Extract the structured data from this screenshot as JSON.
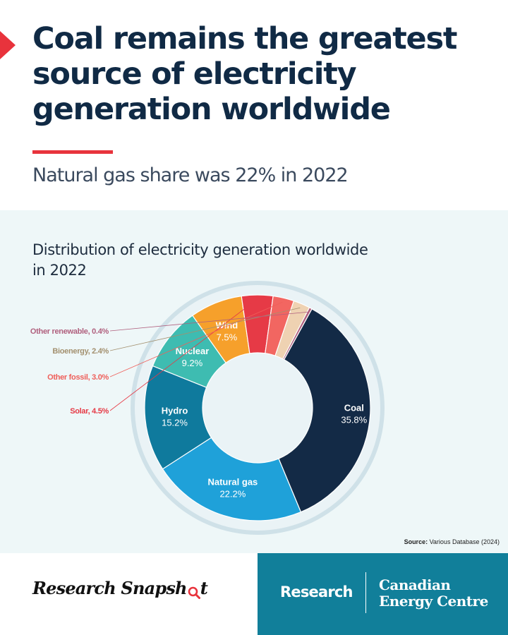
{
  "header": {
    "title": "Coal remains the greatest source of electricity generation worldwide",
    "subtitle": "Natural gas share was 22% in 2022"
  },
  "chart_data": {
    "type": "pie",
    "style": "donut",
    "title": "Distribution of electricity generation worldwide in 2022",
    "slices": [
      {
        "label": "Coal",
        "value": 35.8,
        "value_label": "35.8%",
        "color": "#132a46",
        "label_place": "inside"
      },
      {
        "label": "Natural gas",
        "value": 22.2,
        "value_label": "22.2%",
        "color": "#1fa1d9",
        "label_place": "inside"
      },
      {
        "label": "Hydro",
        "value": 15.2,
        "value_label": "15.2%",
        "color": "#0f7a9d",
        "label_place": "inside"
      },
      {
        "label": "Nuclear",
        "value": 9.2,
        "value_label": "9.2%",
        "color": "#3ebcb1",
        "label_place": "inside"
      },
      {
        "label": "Wind",
        "value": 7.5,
        "value_label": "7.5%",
        "color": "#f6a02b",
        "label_place": "inside"
      },
      {
        "label": "Solar",
        "value": 4.5,
        "value_label": "Solar, 4.5%",
        "color": "#e63a46",
        "label_place": "outside",
        "text_color": "#e63a46"
      },
      {
        "label": "Other fossil",
        "value": 3.0,
        "value_label": "Other fossil, 3.0%",
        "color": "#f26661",
        "label_place": "outside",
        "text_color": "#ef5f5a"
      },
      {
        "label": "Bioenergy",
        "value": 2.4,
        "value_label": "Bioenergy, 2.4%",
        "color": "#efd2b2",
        "label_place": "outside",
        "text_color": "#a3906f"
      },
      {
        "label": "Other renewable",
        "value": 0.4,
        "value_label": "Other renewable, 0.4%",
        "color": "#b0607e",
        "label_place": "outside",
        "text_color": "#b0607e"
      }
    ]
  },
  "source": {
    "prefix": "Source:",
    "text": "Various Database (2024)"
  },
  "footer": {
    "brand": "Research Snapsh",
    "brand_last": "t",
    "research": "Research",
    "org_line1": "Canadian",
    "org_line2": "Energy Centre"
  },
  "colors": {
    "accent_red": "#e8333c",
    "navy": "#102a45",
    "teal": "#117f9a",
    "panel": "#eef7f8",
    "ring": "#cfe1e8"
  }
}
